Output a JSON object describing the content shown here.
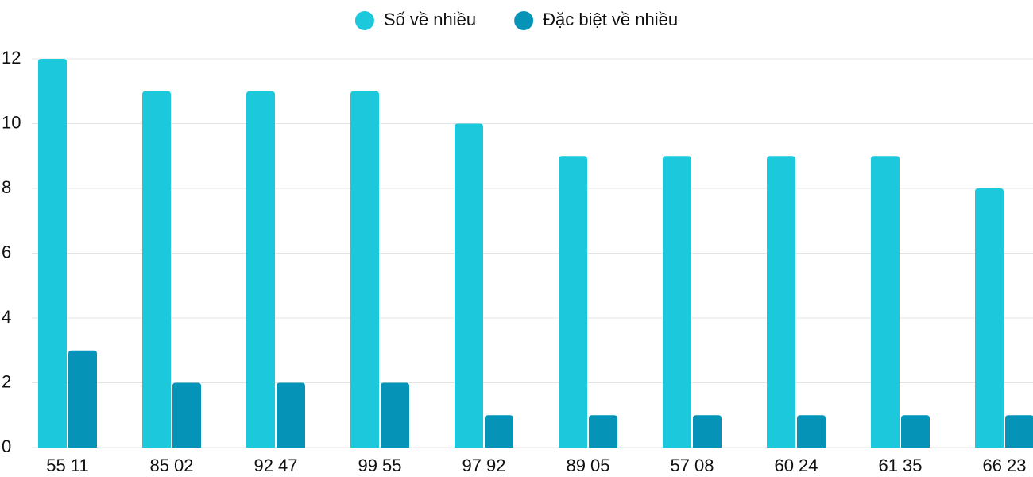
{
  "chart_data": {
    "type": "bar",
    "categories": [
      "55 11",
      "85 02",
      "92 47",
      "99 55",
      "97 92",
      "89 05",
      "57 08",
      "60 24",
      "61 35",
      "66 23"
    ],
    "series": [
      {
        "name": "Số về nhiều",
        "color": "#1bc8dc",
        "values": [
          12,
          11,
          11,
          11,
          10,
          9,
          9,
          9,
          9,
          8
        ]
      },
      {
        "name": "Đặc biệt về nhiều",
        "color": "#0594b8",
        "values": [
          3,
          2,
          2,
          2,
          1,
          1,
          1,
          1,
          1,
          1
        ]
      }
    ],
    "ylim": [
      0,
      12
    ],
    "yticks": [
      0,
      2,
      4,
      6,
      8,
      10,
      12
    ],
    "grid": true,
    "legend": "top"
  }
}
